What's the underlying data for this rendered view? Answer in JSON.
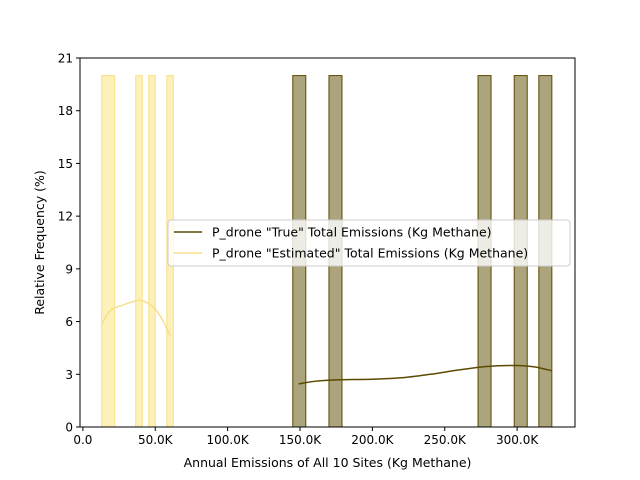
{
  "chart_data": {
    "type": "histogram",
    "xlabel": "Annual Emissions of All 10 Sites (Kg Methane)",
    "ylabel": "Relative Frequency (%)",
    "xlim": [
      -2000,
      340000
    ],
    "ylim": [
      0,
      21
    ],
    "x_ticks": [
      0,
      50000,
      100000,
      150000,
      200000,
      250000,
      300000
    ],
    "x_tick_labels": [
      "0.0",
      "50.0K",
      "100.0K",
      "150.0K",
      "200.0K",
      "250.0K",
      "300.0K"
    ],
    "y_ticks": [
      0,
      3,
      6,
      9,
      12,
      15,
      18,
      21
    ],
    "y_tick_labels": [
      "0",
      "3",
      "6",
      "9",
      "12",
      "15",
      "18",
      "21"
    ],
    "legend_position": "center-right",
    "series": [
      {
        "name": "P_drone \"True\" Total Emissions (Kg Methane)",
        "color": "#5c4a00",
        "fill": "#aca47c",
        "bins": [
          {
            "x0": 145000,
            "x1": 154000,
            "value": 20
          },
          {
            "x0": 170000,
            "x1": 179000,
            "value": 20
          },
          {
            "x0": 273000,
            "x1": 282000,
            "value": 20
          },
          {
            "x0": 298000,
            "x1": 307000,
            "value": 20
          },
          {
            "x0": 315000,
            "x1": 324000,
            "value": 20
          }
        ],
        "kde": [
          [
            149000,
            2.45
          ],
          [
            160000,
            2.6
          ],
          [
            175000,
            2.68
          ],
          [
            200000,
            2.72
          ],
          [
            220000,
            2.8
          ],
          [
            240000,
            3.0
          ],
          [
            260000,
            3.25
          ],
          [
            280000,
            3.45
          ],
          [
            300000,
            3.5
          ],
          [
            312000,
            3.42
          ],
          [
            324000,
            3.2
          ]
        ]
      },
      {
        "name": "P_drone \"Estimated\" Total Emissions (Kg Methane)",
        "color": "#f7e08a",
        "fill": "#fdf0b8",
        "bins": [
          {
            "x0": 13000,
            "x1": 22000,
            "value": 20
          },
          {
            "x0": 36500,
            "x1": 41000,
            "value": 20
          },
          {
            "x0": 45500,
            "x1": 50000,
            "value": 20
          },
          {
            "x0": 58000,
            "x1": 62500,
            "value": 20
          }
        ],
        "kde": [
          [
            13000,
            5.8
          ],
          [
            16000,
            6.3
          ],
          [
            20000,
            6.7
          ],
          [
            28000,
            6.95
          ],
          [
            35000,
            7.15
          ],
          [
            40000,
            7.2
          ],
          [
            45000,
            7.05
          ],
          [
            50000,
            6.7
          ],
          [
            55000,
            6.1
          ],
          [
            59000,
            5.4
          ],
          [
            60500,
            5.2
          ]
        ]
      }
    ]
  }
}
